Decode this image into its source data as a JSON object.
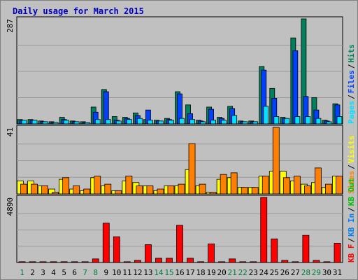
{
  "chart_data": {
    "type": "bar",
    "title": "Daily usage for March 2015",
    "categories": [
      "1",
      "2",
      "3",
      "4",
      "5",
      "6",
      "7",
      "8",
      "9",
      "10",
      "11",
      "12",
      "13",
      "14",
      "15",
      "16",
      "17",
      "18",
      "19",
      "20",
      "21",
      "22",
      "23",
      "24",
      "25",
      "26",
      "27",
      "28",
      "29",
      "30",
      "31"
    ],
    "category_colors": [
      "#008040",
      "#000000",
      "#000000",
      "#000000",
      "#000000",
      "#000000",
      "#008040",
      "#008040",
      "#000000",
      "#000000",
      "#000000",
      "#000000",
      "#000000",
      "#008040",
      "#008040",
      "#000000",
      "#000000",
      "#000000",
      "#000000",
      "#000000",
      "#008040",
      "#008040",
      "#000000",
      "#000000",
      "#000000",
      "#000000",
      "#000000",
      "#008040",
      "#008040",
      "#000000",
      "#000000"
    ],
    "legend_separator": "/",
    "panels": [
      {
        "ylim": [
          0,
          287
        ],
        "series": [
          {
            "name": "Hits",
            "color": "#00805c",
            "values": [
              12,
              12,
              8,
              6,
              18,
              8,
              6,
              46,
              94,
              20,
              18,
              30,
              12,
              10,
              15,
              88,
              52,
              10,
              46,
              18,
              48,
              8,
              8,
              157,
              97,
              18,
              235,
              287,
              72,
              10,
              55
            ]
          },
          {
            "name": "Files",
            "color": "#0040ff",
            "values": [
              10,
              10,
              6,
              4,
              12,
              6,
              4,
              32,
              88,
              10,
              15,
              23,
              38,
              8,
              12,
              82,
              28,
              8,
              40,
              15,
              42,
              6,
              6,
              147,
              70,
              15,
              200,
              75,
              38,
              8,
              52
            ]
          },
          {
            "name": "Pages",
            "color": "#00e0ff",
            "values": [
              10,
              10,
              6,
              4,
              10,
              6,
              4,
              12,
              12,
              8,
              12,
              15,
              10,
              8,
              10,
              15,
              12,
              6,
              10,
              10,
              23,
              6,
              6,
              48,
              20,
              15,
              20,
              20,
              15,
              6,
              20
            ]
          }
        ]
      },
      {
        "ylim": [
          0,
          41
        ],
        "series": [
          {
            "name": "Visits",
            "color": "#ffff00",
            "values": [
              8,
              8,
              5,
              3,
              9,
              3,
              2,
              10,
              5,
              2,
              8,
              7,
              5,
              2,
              5,
              5,
              15,
              5,
              1,
              9,
              10,
              4,
              4,
              11,
              14,
              14,
              8,
              6,
              7,
              4,
              11
            ]
          },
          {
            "name": "Sites",
            "color": "#ff8000",
            "values": [
              6,
              6,
              5,
              1,
              10,
              5,
              3,
              11,
              6,
              2,
              11,
              5,
              5,
              3,
              5,
              6,
              31,
              6,
              1,
              12,
              13,
              4,
              4,
              11,
              41,
              10,
              11,
              5,
              16,
              6,
              11
            ]
          }
        ]
      },
      {
        "ylim": [
          0,
          4890
        ],
        "series": [
          {
            "name": "KB F",
            "color": "#ff0000",
            "values": [
              60,
              60,
              60,
              60,
              60,
              60,
              60,
              270,
              2955,
              1935,
              60,
              160,
              1340,
              320,
              320,
              2795,
              320,
              60,
              1400,
              60,
              270,
              60,
              60,
              4890,
              1775,
              160,
              60,
              2040,
              160,
              60,
              1450
            ]
          }
        ],
        "legend_extra": [
          {
            "name": "KB In",
            "color": "#0080ff"
          },
          {
            "name": "KB Out",
            "color": "#00c000"
          }
        ]
      }
    ]
  }
}
